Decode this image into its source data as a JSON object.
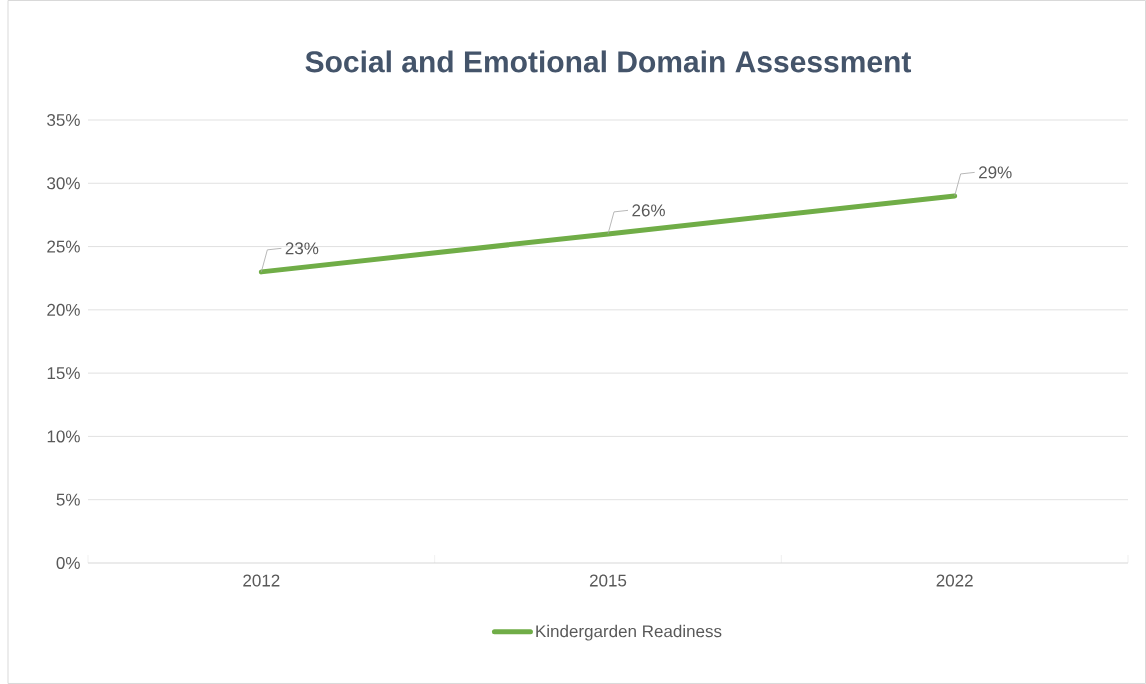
{
  "chart_data": {
    "type": "line",
    "title": "Social and Emotional Domain Assessment",
    "categories": [
      "2012",
      "2015",
      "2022"
    ],
    "series": [
      {
        "name": "Kindergarden Readiness",
        "color": "#70ad47",
        "values": [
          23,
          26,
          29
        ],
        "value_labels": [
          "23%",
          "26%",
          "29%"
        ]
      }
    ],
    "ylim": [
      0,
      35
    ],
    "yticks": [
      {
        "value": 0,
        "label": "0%"
      },
      {
        "value": 5,
        "label": "5%"
      },
      {
        "value": 10,
        "label": "10%"
      },
      {
        "value": 15,
        "label": "15%"
      },
      {
        "value": 20,
        "label": "20%"
      },
      {
        "value": 25,
        "label": "25%"
      },
      {
        "value": 30,
        "label": "30%"
      },
      {
        "value": 35,
        "label": "35%"
      }
    ],
    "grid": "y",
    "legend": "bottom",
    "marker": "none",
    "line_style": "solid"
  }
}
